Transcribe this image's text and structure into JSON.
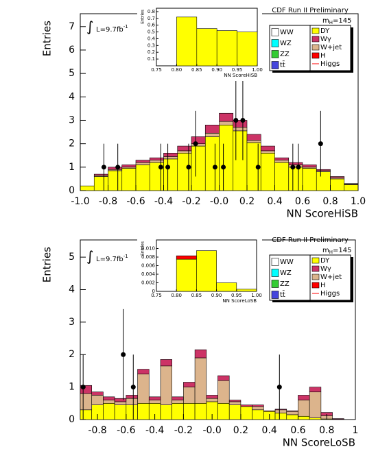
{
  "chart_data": [
    {
      "type": "histogram",
      "header": "CDF Run II Preliminary",
      "mass_label": {
        "text": "m",
        "sub": "H",
        "rest": "=145"
      },
      "lumi": {
        "integral": "∫",
        "text": "L=9.7fb",
        "sup": "-1"
      },
      "xlabel": "NN ScoreHiSB",
      "ylabel": "Entries",
      "xlim": [
        -1,
        1
      ],
      "ylim": [
        0,
        7.55
      ],
      "xticks": [
        {
          "value": -1,
          "label": "-1.0"
        },
        -0.8,
        -0.6,
        -0.4,
        -0.2,
        {
          "value": 0,
          "label": "-0.0"
        },
        0.2,
        0.4,
        0.6,
        0.8,
        {
          "value": 1,
          "label": "1.0"
        }
      ],
      "yticks": [
        0,
        1,
        2,
        3,
        4,
        5,
        6,
        7
      ],
      "bins": [
        -1,
        -0.9,
        -0.8,
        -0.7,
        -0.6,
        -0.5,
        -0.4,
        -0.3,
        -0.2,
        -0.1,
        0,
        0.1,
        0.2,
        0.3,
        0.4,
        0.5,
        0.6,
        0.7,
        0.8,
        0.9,
        1
      ],
      "series": [
        {
          "name": "DY",
          "color": "#ffff00",
          "values": [
            0.2,
            0.6,
            0.85,
            0.95,
            1.1,
            1.2,
            1.35,
            1.6,
            1.9,
            2.3,
            2.8,
            2.55,
            2.05,
            1.6,
            1.2,
            1.0,
            0.95,
            0.8,
            0.5,
            0.25
          ]
        },
        {
          "name": "W+jet",
          "color": "#dcb48c",
          "values": [
            0,
            0.05,
            0.05,
            0.05,
            0.1,
            0.1,
            0.1,
            0.1,
            0.1,
            0.15,
            0.15,
            0.15,
            0.1,
            0.1,
            0.1,
            0.1,
            0.05,
            0.05,
            0.05,
            0.03
          ]
        },
        {
          "name": "Wγ",
          "color": "#cc3366",
          "values": [
            0,
            0.05,
            0.1,
            0.1,
            0.1,
            0.1,
            0.15,
            0.2,
            0.3,
            0.35,
            0.35,
            0.3,
            0.25,
            0.2,
            0.1,
            0.1,
            0.1,
            0.05,
            0.05,
            0.02
          ]
        }
      ],
      "other_legend": [
        {
          "name": "WW",
          "color": "#ffffff"
        },
        {
          "name": "WZ",
          "color": "#00ffff"
        },
        {
          "name": "ZZ",
          "color": "#33cc33"
        },
        {
          "name": "tt̄",
          "color": "#4444dd"
        },
        {
          "name": "H",
          "color": "#ff0000"
        },
        {
          "name": "Higgs",
          "color": "#ff0000"
        }
      ],
      "data": {
        "x": [
          -0.83,
          -0.73,
          -0.42,
          -0.37,
          -0.22,
          -0.17,
          -0.03,
          0.03,
          0.12,
          0.17,
          0.28,
          0.53,
          0.57,
          0.73
        ],
        "y": [
          1,
          1,
          1,
          1,
          1,
          2,
          1,
          1,
          3,
          3,
          1,
          1,
          1,
          2
        ],
        "errors": [
          1,
          1,
          1,
          1,
          1,
          1.4,
          1,
          1,
          1.7,
          1.7,
          1,
          1,
          1,
          1.4
        ]
      },
      "inset": {
        "type": "histogram",
        "xlabel": "NN ScoreHiSB",
        "ylabel": "Entries",
        "xlim": [
          0.75,
          1
        ],
        "ylim": [
          0,
          0.85
        ],
        "xticks": [
          0.75,
          {
            "value": 0.8,
            "label": "0.80"
          },
          0.85,
          {
            "value": 0.9,
            "label": "0.90"
          },
          0.95,
          {
            "value": 1,
            "label": "1.00"
          }
        ],
        "yticks": [
          0.1,
          0.2,
          0.3,
          0.4,
          0.5,
          0.6,
          0.7,
          0.8
        ],
        "bins": [
          0.75,
          0.8,
          0.85,
          0.9,
          0.95,
          1
        ],
        "series": [
          {
            "color": "#ffff00",
            "values": [
              0,
              0.72,
              0.55,
              0.52,
              0.5
            ]
          }
        ]
      }
    },
    {
      "type": "histogram",
      "header": "CDF Run II Preliminary",
      "mass_label": {
        "text": "m",
        "sub": "H",
        "rest": "=145"
      },
      "lumi": {
        "integral": "∫",
        "text": "L=9.7fb",
        "sup": "-1"
      },
      "xlabel": "NN ScoreLoSB",
      "ylabel": "Entries",
      "xlim": [
        -0.92,
        1
      ],
      "ylim": [
        0,
        5.53
      ],
      "xticks": [
        -0.8,
        -0.6,
        -0.4,
        -0.2,
        {
          "value": 0,
          "label": "-0.0"
        },
        0.2,
        0.4,
        0.6,
        0.8,
        1
      ],
      "yticks": [
        0,
        1,
        2,
        3,
        4,
        5
      ],
      "bins": [
        -0.92,
        -0.84,
        -0.76,
        -0.68,
        -0.6,
        -0.52,
        -0.44,
        -0.36,
        -0.28,
        -0.2,
        -0.12,
        -0.04,
        0.04,
        0.12,
        0.2,
        0.28,
        0.36,
        0.44,
        0.52,
        0.6,
        0.68,
        0.76,
        0.84,
        0.92,
        1
      ],
      "series": [
        {
          "name": "DY",
          "color": "#ffff00",
          "values": [
            0.3,
            0.45,
            0.5,
            0.45,
            0.45,
            0.5,
            0.5,
            0.45,
            0.5,
            0.5,
            0.5,
            0.55,
            0.5,
            0.45,
            0.4,
            0.3,
            0.25,
            0.2,
            0.15,
            0.1,
            0.05,
            0.02,
            0.01,
            0
          ]
        },
        {
          "name": "W+jet",
          "color": "#dcb48c",
          "values": [
            0.5,
            0.3,
            0.1,
            0.1,
            0.2,
            0.9,
            0.1,
            1.2,
            0.1,
            0.5,
            1.4,
            0.1,
            0.7,
            0.1,
            0,
            0.1,
            0,
            0.1,
            0.1,
            0.5,
            0.8,
            0.1,
            0,
            0
          ]
        },
        {
          "name": "Wγ",
          "color": "#cc3366",
          "values": [
            0.25,
            0.1,
            0.1,
            0.1,
            0.1,
            0.15,
            0.1,
            0.2,
            0.1,
            0.15,
            0.25,
            0.1,
            0.15,
            0.05,
            0.05,
            0.05,
            0.02,
            0.02,
            0.02,
            0.15,
            0.15,
            0.1,
            0.02,
            0
          ]
        }
      ],
      "other_legend": [
        {
          "name": "WW",
          "color": "#ffffff"
        },
        {
          "name": "WZ",
          "color": "#00ffff"
        },
        {
          "name": "ZZ",
          "color": "#33cc33"
        },
        {
          "name": "tt̄",
          "color": "#4444dd"
        },
        {
          "name": "H",
          "color": "#ff0000"
        },
        {
          "name": "Higgs",
          "color": "#ff0000"
        }
      ],
      "data": {
        "x": [
          -0.9,
          -0.62,
          -0.55,
          0.47
        ],
        "y": [
          1,
          2,
          1,
          1
        ],
        "errors": [
          1,
          1.4,
          1,
          1
        ]
      },
      "inset": {
        "type": "histogram",
        "xlabel": "NN ScoreLoSB",
        "ylabel": "Entries",
        "xlim": [
          0.75,
          1
        ],
        "ylim": [
          0,
          0.012
        ],
        "xticks": [
          0.75,
          {
            "value": 0.8,
            "label": "0.80"
          },
          0.85,
          {
            "value": 0.9,
            "label": "0.90"
          },
          0.95,
          {
            "value": 1,
            "label": "1.00"
          }
        ],
        "yticks": [
          0,
          0.002,
          0.004,
          0.006,
          0.008,
          {
            "value": 0.01,
            "label": "0.010"
          }
        ],
        "bins": [
          0.75,
          0.8,
          0.85,
          0.9,
          0.95,
          1
        ],
        "series": [
          {
            "color": "#ffff00",
            "values": [
              0,
              0.0075,
              0.0095,
              0.002,
              0.0005
            ]
          },
          {
            "color": "#ff0000",
            "values": [
              0,
              0.0008,
              0,
              0,
              0
            ]
          }
        ]
      }
    }
  ]
}
